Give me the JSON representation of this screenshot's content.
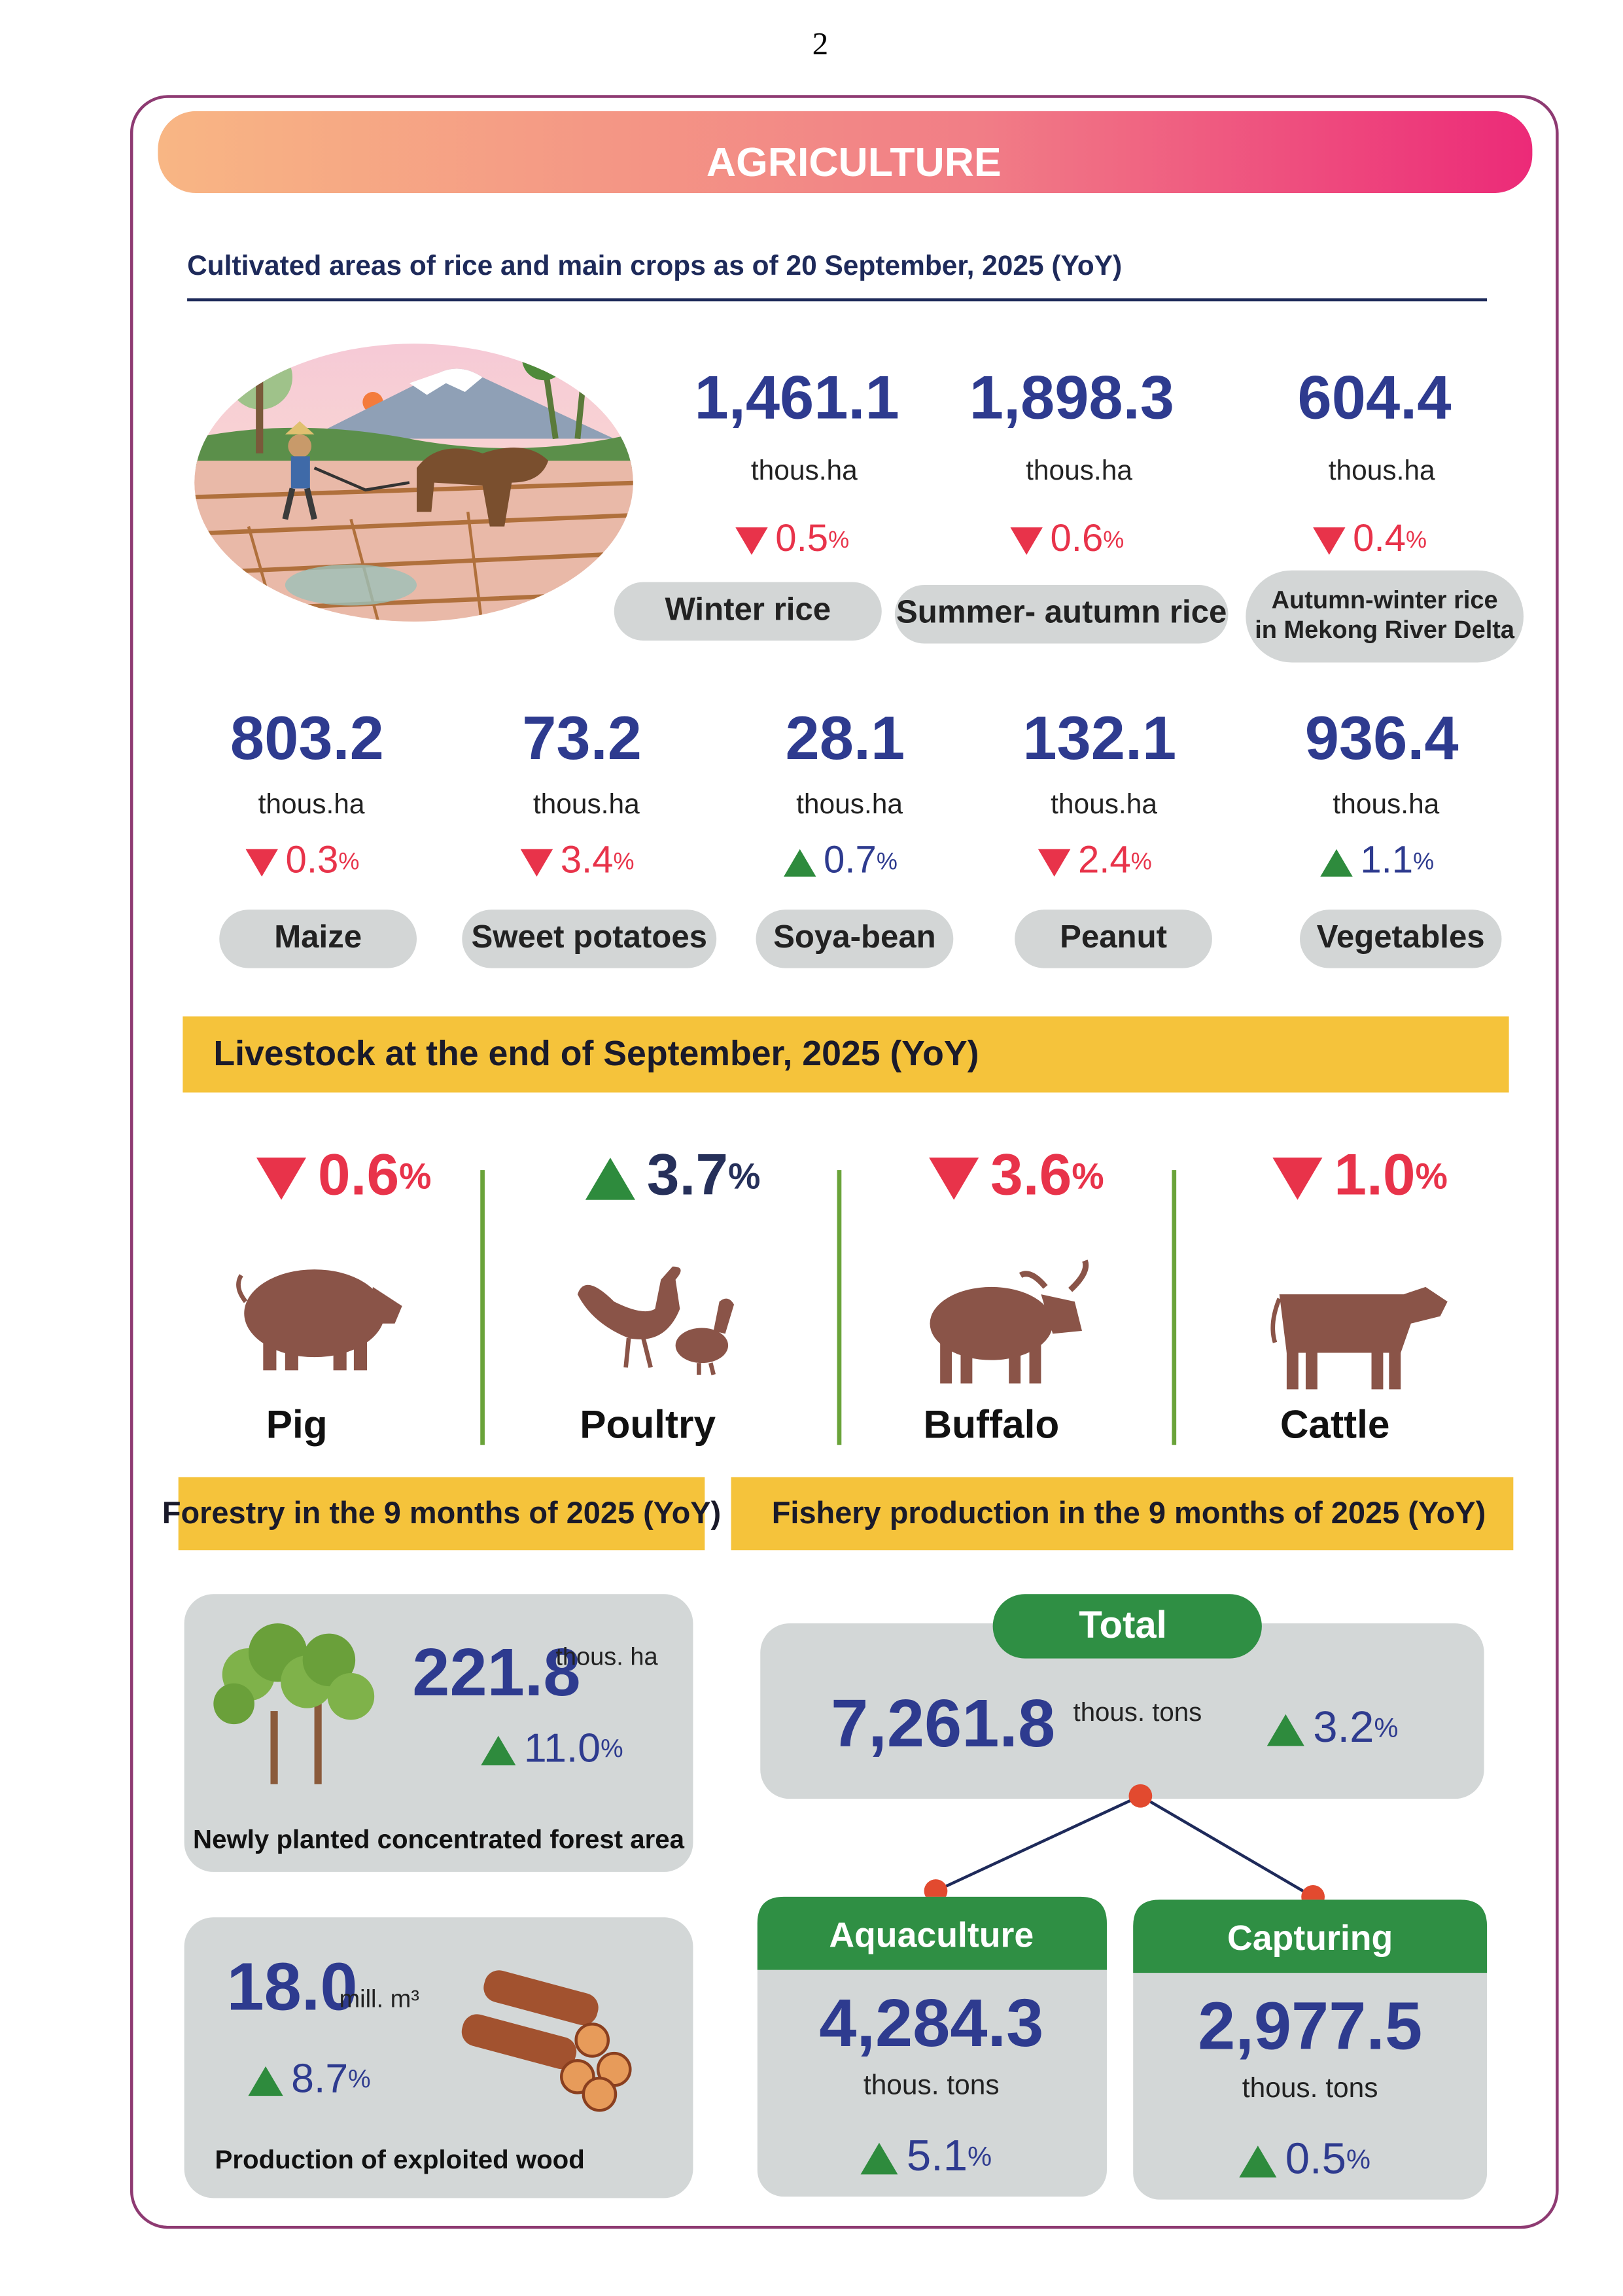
{
  "page_number": "2",
  "header": {
    "title": "AGRICULTURE"
  },
  "crops": {
    "title": "Cultivated areas of rice and main crops as of 20 September, 2025 (YoY)",
    "rice": [
      {
        "value": "1,461.1",
        "unit": "thous.ha",
        "change": "0.5",
        "change_unit": "%",
        "direction": "down",
        "label": "Winter rice"
      },
      {
        "value": "1,898.3",
        "unit": "thous.ha",
        "change": "0.6",
        "change_unit": "%",
        "direction": "down",
        "label": "Summer- autumn rice"
      },
      {
        "value": "604.4",
        "unit": "thous.ha",
        "change": "0.4",
        "change_unit": "%",
        "direction": "down",
        "label": [
          "Autumn-winter rice",
          "in Mekong River Delta"
        ]
      }
    ],
    "main": [
      {
        "value": "803.2",
        "unit": "thous.ha",
        "change": "0.3",
        "change_unit": "%",
        "direction": "down",
        "label": "Maize"
      },
      {
        "value": "73.2",
        "unit": "thous.ha",
        "change": "3.4",
        "change_unit": "%",
        "direction": "down",
        "label": "Sweet potatoes"
      },
      {
        "value": "28.1",
        "unit": "thous.ha",
        "change": "0.7",
        "change_unit": "%",
        "direction": "up",
        "label": "Soya-bean"
      },
      {
        "value": "132.1",
        "unit": "thous.ha",
        "change": "2.4",
        "change_unit": "%",
        "direction": "down",
        "label": "Peanut"
      },
      {
        "value": "936.4",
        "unit": "thous.ha",
        "change": "1.1",
        "change_unit": "%",
        "direction": "up",
        "label": "Vegetables"
      }
    ]
  },
  "livestock": {
    "title": "Livestock at the end of September, 2025 (YoY)",
    "items": [
      {
        "change": "0.6",
        "change_unit": "%",
        "direction": "down",
        "label": "Pig"
      },
      {
        "change": "3.7",
        "change_unit": "%",
        "direction": "up",
        "label": "Poultry"
      },
      {
        "change": "3.6",
        "change_unit": "%",
        "direction": "down",
        "label": "Buffalo"
      },
      {
        "change": "1.0",
        "change_unit": "%",
        "direction": "down",
        "label": "Cattle"
      }
    ]
  },
  "forestry": {
    "title": "Forestry in the 9 months of 2025 (YoY)",
    "items": [
      {
        "value": "221.8",
        "unit": "thous. ha",
        "change": "11.0",
        "change_unit": "%",
        "direction": "up",
        "label": "Newly planted concentrated forest area"
      },
      {
        "value": "18.0",
        "unit": "mill. m³",
        "change": "8.7",
        "change_unit": "%",
        "direction": "up",
        "label": "Production of exploited wood"
      }
    ]
  },
  "fishery": {
    "title": "Fishery production in the 9 months of 2025 (YoY)",
    "total": {
      "label": "Total",
      "value": "7,261.8",
      "unit": "thous. tons",
      "change": "3.2",
      "change_unit": "%",
      "direction": "up"
    },
    "parts": [
      {
        "label": "Aquaculture",
        "value": "4,284.3",
        "unit": "thous. tons",
        "change": "5.1",
        "change_unit": "%",
        "direction": "up"
      },
      {
        "label": "Capturing",
        "value": "2,977.5",
        "unit": "thous. tons",
        "change": "0.5",
        "change_unit": "%",
        "direction": "up"
      }
    ]
  }
}
